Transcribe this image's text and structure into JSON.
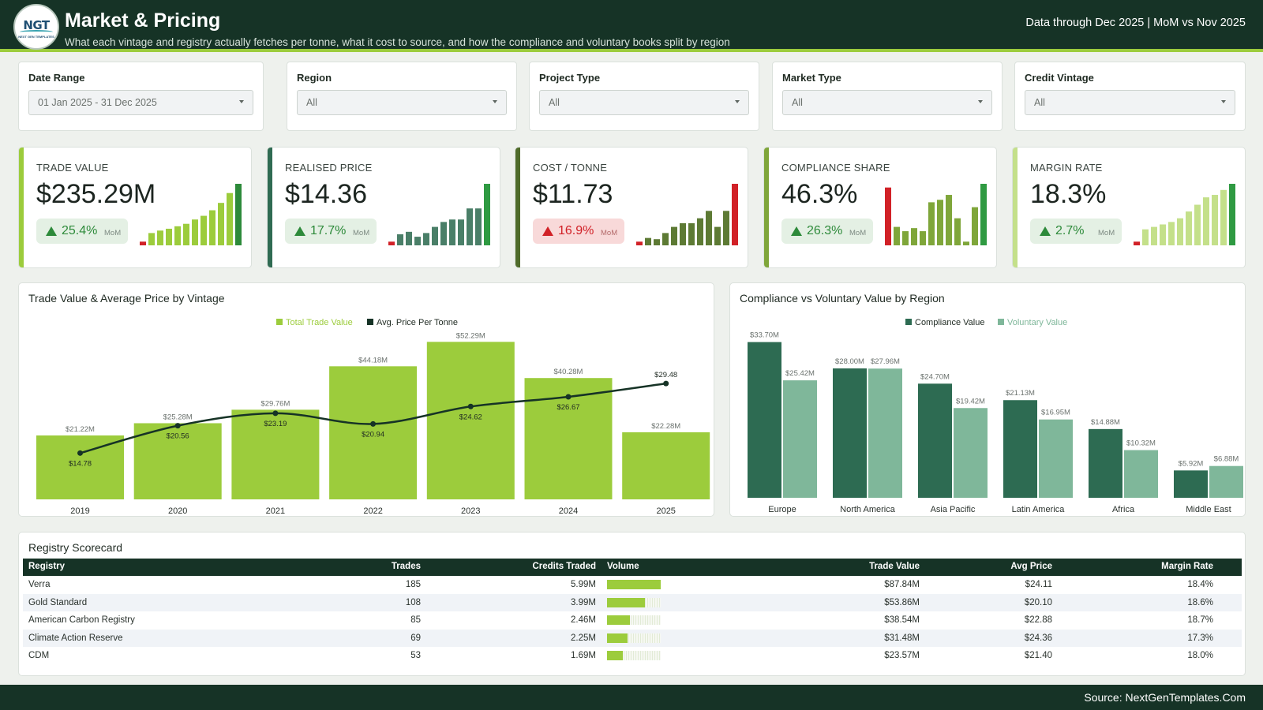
{
  "header": {
    "logo_text": "NGT",
    "logo_subtext": "NEXT GEN TEMPLATES",
    "title": "Market & Pricing",
    "subtitle": "What each vintage and registry actually fetches per tonne, what it cost to source, and how the compliance and voluntary books split by region",
    "data_through": "Data through Dec 2025 | MoM vs Nov 2025"
  },
  "filters": [
    {
      "label": "Date Range",
      "value": "01 Jan 2025 - 31 Dec 2025"
    },
    {
      "label": "Region",
      "value": "All"
    },
    {
      "label": "Project Type",
      "value": "All"
    },
    {
      "label": "Market Type",
      "value": "All"
    },
    {
      "label": "Credit Vintage",
      "value": "All"
    }
  ],
  "kpis": [
    {
      "label": "TRADE VALUE",
      "value": "$235.29M",
      "change": "25.4%",
      "change_label": "MoM",
      "direction": "up",
      "favorable": true,
      "accent": "#9ccc3c",
      "bar_color": "#9ccc3c",
      "last_color": "#2d8a3a",
      "spark": [
        0.06,
        0.2,
        0.24,
        0.27,
        0.31,
        0.35,
        0.42,
        0.48,
        0.57,
        0.69,
        0.85,
        1.0
      ]
    },
    {
      "label": "REALISED PRICE",
      "value": "$14.36",
      "change": "17.7%",
      "change_label": "MoM",
      "direction": "up",
      "favorable": true,
      "accent": "#2f6b52",
      "bar_color": "#4a7f68",
      "last_color": "#2f9a42",
      "spark": [
        0.06,
        0.18,
        0.22,
        0.14,
        0.2,
        0.3,
        0.38,
        0.42,
        0.42,
        0.6,
        0.6,
        1.0
      ]
    },
    {
      "label": "COST / TONNE",
      "value": "$11.73",
      "change": "16.9%",
      "change_label": "MoM",
      "direction": "up",
      "favorable": false,
      "accent": "#4f6b2a",
      "bar_color": "#5d7a34",
      "last_color": "#d12127",
      "spark": [
        0.06,
        0.12,
        0.1,
        0.2,
        0.3,
        0.36,
        0.36,
        0.44,
        0.56,
        0.3,
        0.56,
        1.0
      ]
    },
    {
      "label": "COMPLIANCE SHARE",
      "value": "46.3%",
      "change": "26.3%",
      "change_label": "MoM",
      "direction": "up",
      "favorable": true,
      "accent": "#7fa63a",
      "bar_color": "#7fa63a",
      "last_color": "#2f9a42",
      "spark": [
        0.94,
        0.3,
        0.23,
        0.28,
        0.23,
        0.7,
        0.74,
        0.82,
        0.44,
        0.06,
        0.62,
        1.0
      ]
    },
    {
      "label": "MARGIN RATE",
      "value": "18.3%",
      "change": "2.7%",
      "change_label": "MoM",
      "direction": "up",
      "favorable": true,
      "accent": "#c4e08a",
      "bar_color": "#c4e08a",
      "last_color": "#2f9a42",
      "spark": [
        0.06,
        0.26,
        0.3,
        0.34,
        0.38,
        0.44,
        0.55,
        0.66,
        0.78,
        0.82,
        0.9,
        1.0
      ]
    }
  ],
  "vintage_chart": {
    "title": "Trade Value & Average Price by Vintage",
    "legend_trade": "Total Trade Value",
    "legend_price": "Avg. Price Per Tonne",
    "bar_color": "#9ccc3c",
    "line_color": "#163326",
    "chart_data": {
      "type": "bar",
      "categories": [
        "2019",
        "2020",
        "2021",
        "2022",
        "2023",
        "2024",
        "2025"
      ],
      "series": [
        {
          "name": "Total Trade Value",
          "values": [
            21.22,
            25.28,
            29.76,
            44.18,
            52.29,
            40.28,
            22.28
          ],
          "labels": [
            "$21.22M",
            "$25.28M",
            "$29.76M",
            "$44.18M",
            "$52.29M",
            "$40.28M",
            "$22.28M"
          ]
        },
        {
          "name": "Avg. Price Per Tonne",
          "type": "line",
          "values": [
            14.78,
            20.56,
            23.19,
            20.94,
            24.62,
            26.67,
            29.48
          ],
          "labels": [
            "$14.78",
            "$20.56",
            "$23.19",
            "$20.94",
            "$24.62",
            "$26.67",
            "$29.48"
          ]
        }
      ],
      "ylim": [
        0,
        55
      ],
      "y2lim": [
        5,
        40
      ]
    }
  },
  "region_chart": {
    "title": "Compliance vs Voluntary Value by Region",
    "legend_compliance": "Compliance Value",
    "legend_voluntary": "Voluntary Value",
    "compliance_color": "#2d6b52",
    "voluntary_color": "#7fb79a",
    "chart_data": {
      "type": "bar",
      "categories": [
        "Europe",
        "North America",
        "Asia Pacific",
        "Latin America",
        "Africa",
        "Middle East"
      ],
      "series": [
        {
          "name": "Compliance Value",
          "values": [
            33.7,
            28.0,
            24.7,
            21.13,
            14.88,
            5.92
          ],
          "labels": [
            "$33.70M",
            "$28.00M",
            "$24.70M",
            "$21.13M",
            "$14.88M",
            "$5.92M"
          ]
        },
        {
          "name": "Voluntary Value",
          "values": [
            25.42,
            27.96,
            19.42,
            16.95,
            10.32,
            6.88
          ],
          "labels": [
            "$25.42M",
            "$27.96M",
            "$19.42M",
            "$16.95M",
            "$10.32M",
            "$6.88M"
          ]
        }
      ],
      "ylim": [
        0,
        35
      ]
    }
  },
  "scorecard": {
    "title": "Registry Scorecard",
    "columns": [
      "Registry",
      "Trades",
      "Credits Traded",
      "Volume",
      "Trade Value",
      "Avg Price",
      "Margin Rate"
    ],
    "rows": [
      {
        "registry": "Verra",
        "trades": "185",
        "credits": "5.99M",
        "volume": 1.0,
        "value": "$87.84M",
        "price": "$24.11",
        "margin": "18.4%"
      },
      {
        "registry": "Gold Standard",
        "trades": "108",
        "credits": "3.99M",
        "volume": 0.71,
        "value": "$53.86M",
        "price": "$20.10",
        "margin": "18.6%"
      },
      {
        "registry": "American Carbon Registry",
        "trades": "85",
        "credits": "2.46M",
        "volume": 0.42,
        "value": "$38.54M",
        "price": "$22.88",
        "margin": "18.7%"
      },
      {
        "registry": "Climate Action Reserve",
        "trades": "69",
        "credits": "2.25M",
        "volume": 0.38,
        "value": "$31.48M",
        "price": "$24.36",
        "margin": "17.3%"
      },
      {
        "registry": "CDM",
        "trades": "53",
        "credits": "1.69M",
        "volume": 0.3,
        "value": "$23.57M",
        "price": "$21.40",
        "margin": "18.0%"
      }
    ]
  },
  "footer": {
    "source": "Source: NextGenTemplates.Com"
  }
}
